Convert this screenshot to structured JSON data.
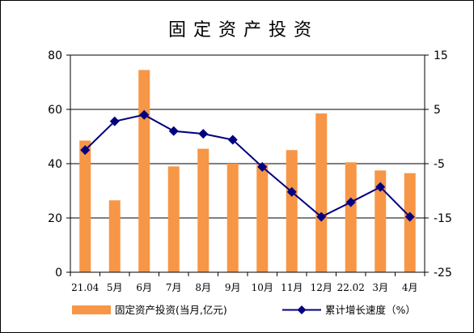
{
  "chart_data": {
    "type": "bar+line",
    "title": "固定资产投资",
    "categories": [
      "21.04",
      "5月",
      "6月",
      "7月",
      "8月",
      "9月",
      "10月",
      "11月",
      "12月",
      "22.02",
      "3月",
      "4月"
    ],
    "series": [
      {
        "name": "固定资产投资(当月,亿元)",
        "type": "bar",
        "axis": "left",
        "color": "#F79646",
        "values": [
          48.5,
          26.5,
          74.5,
          39.0,
          45.5,
          40.0,
          40.0,
          45.0,
          58.5,
          40.5,
          37.5,
          36.5
        ]
      },
      {
        "name": "累计增长速度（%）",
        "type": "line",
        "axis": "right",
        "color": "#000080",
        "values": [
          -2.5,
          2.8,
          4.0,
          1.0,
          0.5,
          -0.6,
          -5.6,
          -10.2,
          -14.8,
          -12.1,
          -9.3,
          -14.8
        ]
      }
    ],
    "y_left": {
      "ylim": [
        0,
        80
      ],
      "ticks": [
        0,
        20,
        40,
        60,
        80
      ]
    },
    "y_right": {
      "ylim": [
        -25,
        15
      ],
      "ticks": [
        15,
        5,
        -5,
        -15,
        -25
      ]
    },
    "grid": true,
    "legend_position": "bottom"
  }
}
